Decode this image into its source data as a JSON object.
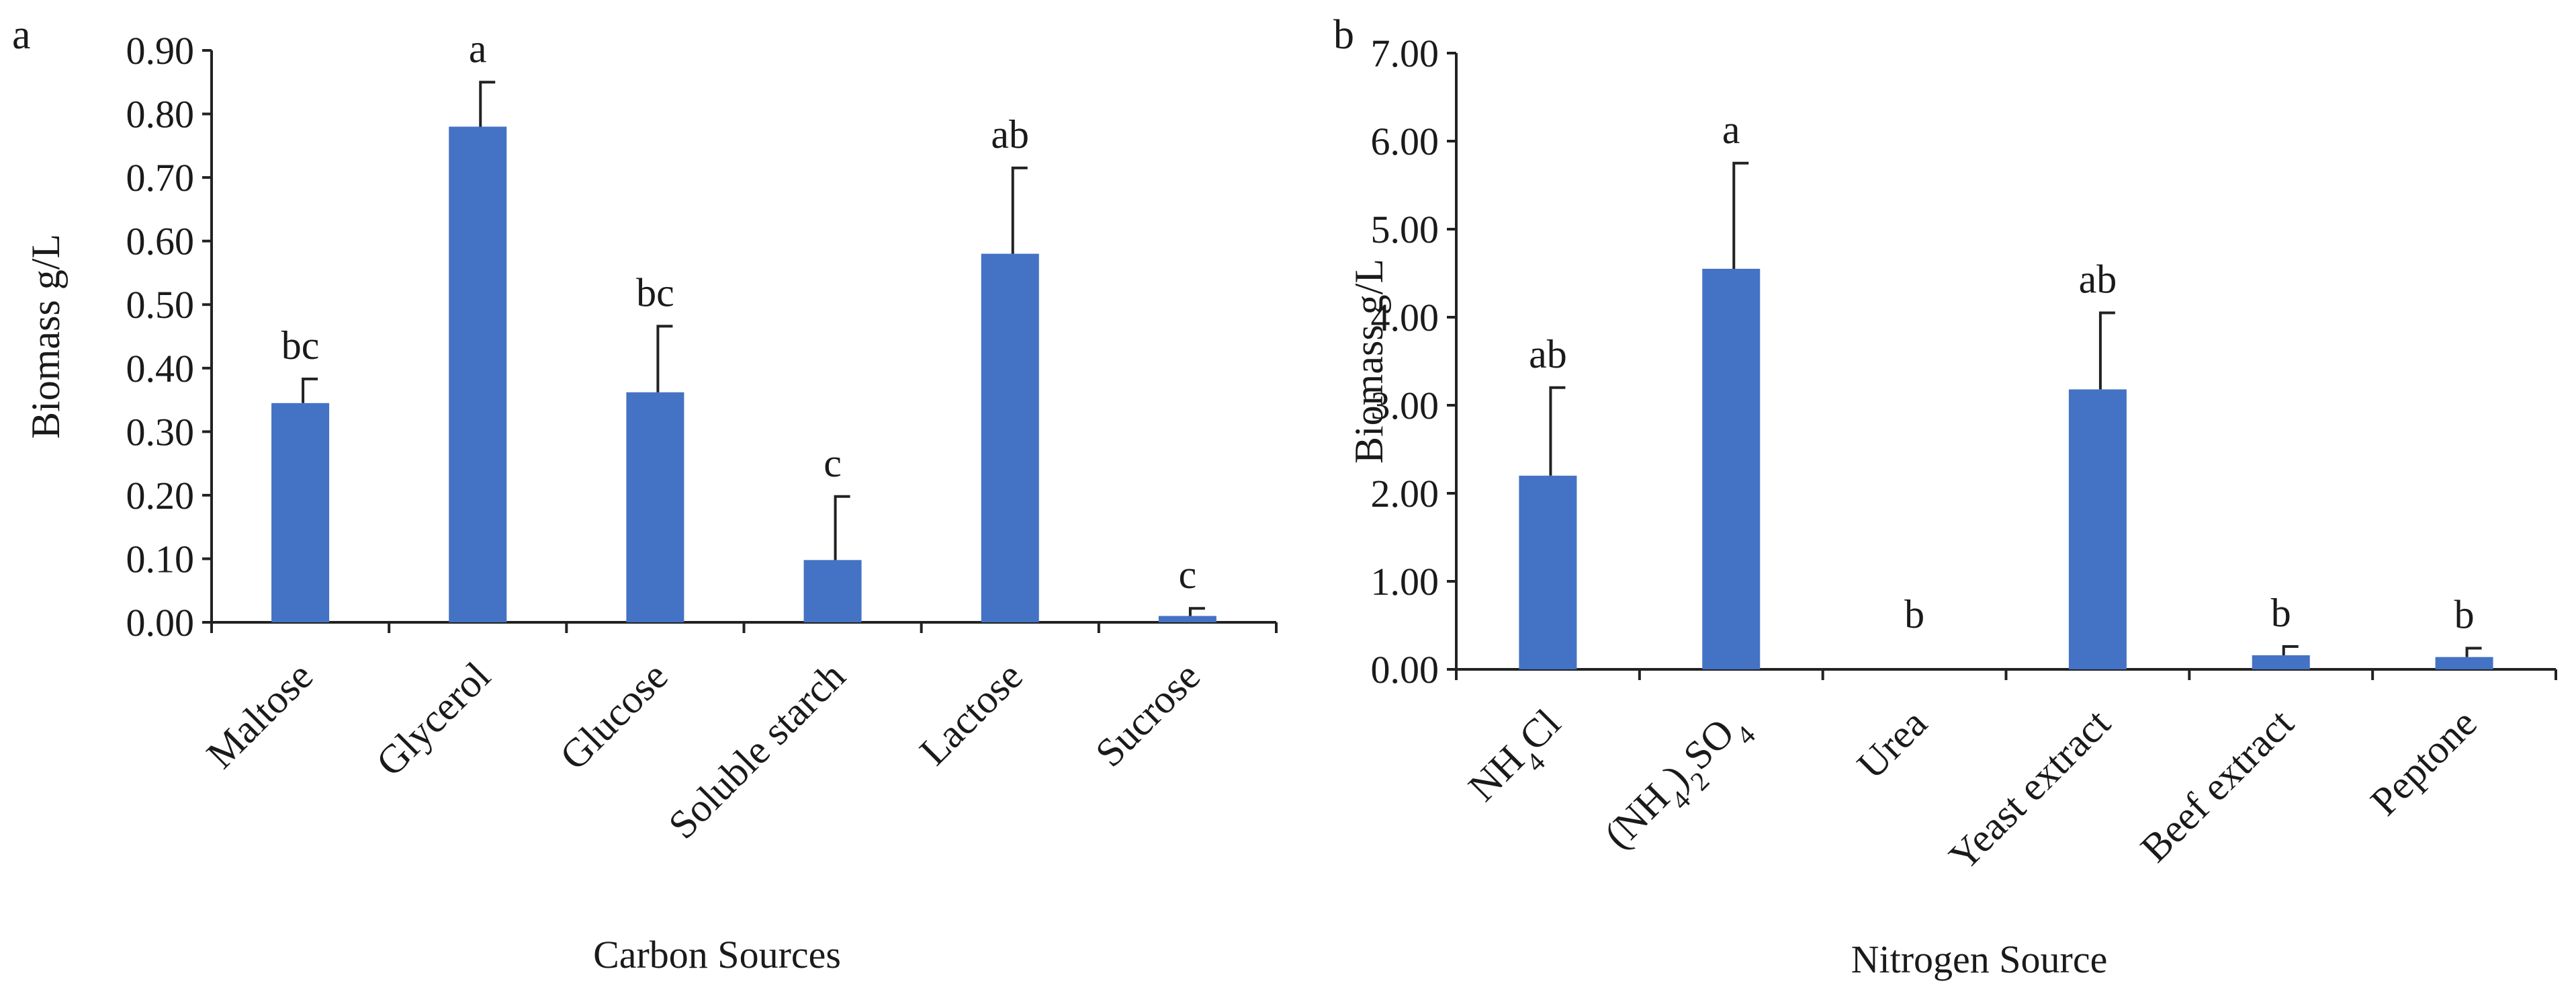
{
  "chart_data": [
    {
      "type": "bar",
      "panel": "a",
      "title": "",
      "xlabel": "Carbon Sources",
      "ylabel": "Biomass g/L",
      "ylim": [
        0,
        0.9
      ],
      "yticks": [
        "0.00",
        "0.10",
        "0.20",
        "0.30",
        "0.40",
        "0.50",
        "0.60",
        "0.70",
        "0.80",
        "0.90"
      ],
      "categories": [
        "Maltose",
        "Glycerol",
        "Glucose",
        "Soluble starch",
        "Lactose",
        "Sucrose"
      ],
      "values": [
        0.345,
        0.78,
        0.362,
        0.098,
        0.58,
        0.01
      ],
      "errors": [
        0.038,
        0.07,
        0.104,
        0.1,
        0.135,
        0.012
      ],
      "significance": [
        "bc",
        "a",
        "bc",
        "c",
        "ab",
        "c"
      ],
      "bar_color": "#4472C4",
      "grid": false
    },
    {
      "type": "bar",
      "panel": "b",
      "title": "",
      "xlabel": "Nitrogen Source",
      "ylabel": "Biomass g/L",
      "ylim": [
        0,
        7
      ],
      "yticks": [
        "0.00",
        "1.00",
        "2.00",
        "3.00",
        "4.00",
        "5.00",
        "6.00",
        "7.00"
      ],
      "categories": [
        "NH4Cl",
        "(NH4)2SO4",
        "Urea",
        "Yeast extract",
        "Beef extract",
        "Peptone"
      ],
      "category_display": [
        [
          {
            "t": "NH"
          },
          {
            "t": "4",
            "sub": true
          },
          {
            "t": "Cl"
          }
        ],
        [
          {
            "t": "(NH"
          },
          {
            "t": "4",
            "sub": true
          },
          {
            "t": ")"
          },
          {
            "t": "2",
            "sub": true
          },
          {
            "t": "SO"
          },
          {
            "t": "4",
            "sub": true
          }
        ],
        [
          {
            "t": "Urea"
          }
        ],
        [
          {
            "t": "Yeast extract"
          }
        ],
        [
          {
            "t": "Beef extract"
          }
        ],
        [
          {
            "t": "Peptone"
          }
        ]
      ],
      "values": [
        2.2,
        4.55,
        0.0,
        3.18,
        0.16,
        0.14
      ],
      "errors": [
        1.0,
        1.2,
        0.0,
        0.87,
        0.1,
        0.1
      ],
      "significance": [
        "ab",
        "a",
        "b",
        "ab",
        "b",
        "b"
      ],
      "bar_color": "#4472C4",
      "grid": false
    }
  ]
}
